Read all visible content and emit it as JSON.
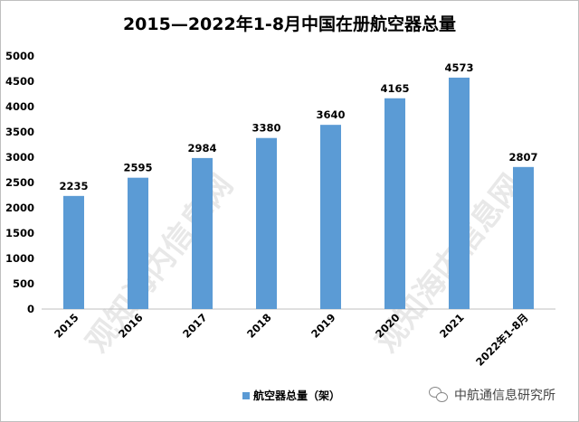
{
  "chart_data": {
    "type": "bar",
    "title": "2015—2022年1-8月中国在册航空器总量",
    "categories": [
      "2015",
      "2016",
      "2017",
      "2018",
      "2019",
      "2020",
      "2021",
      "2022年1-8月"
    ],
    "series": [
      {
        "name": "航空器总量（架）",
        "values": [
          2235,
          2595,
          2984,
          3380,
          3640,
          4165,
          4573,
          2807
        ]
      }
    ],
    "ylim": [
      0,
      5000
    ],
    "yticks": [
      0,
      500,
      1000,
      1500,
      2000,
      2500,
      3000,
      3500,
      4000,
      4500,
      5000
    ],
    "grid": false,
    "legend_position": "bottom",
    "bar_color": "#5b9bd5",
    "data_labels": true
  },
  "watermark": {
    "text": "观知海内信息网"
  },
  "source": {
    "text": "中航通信息研究所",
    "icon": "wechat-icon"
  }
}
